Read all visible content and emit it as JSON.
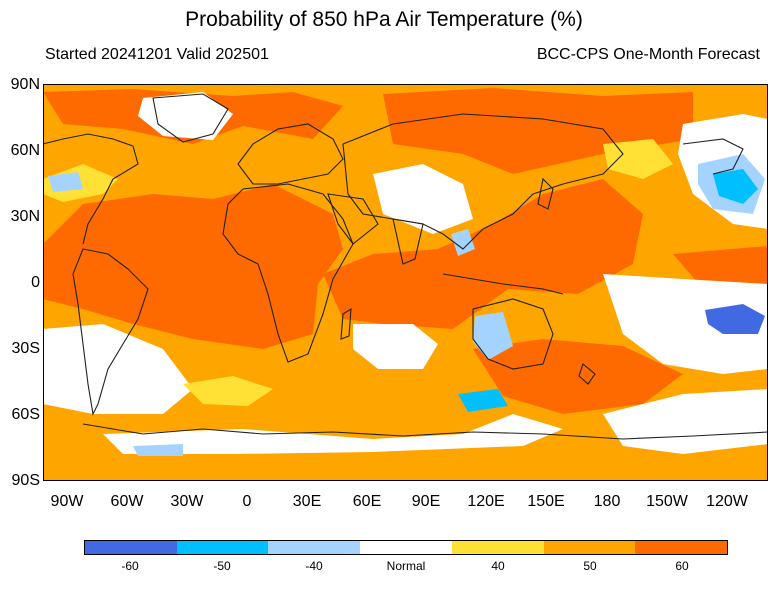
{
  "title": "Probability of 850 hPa Air Temperature (%)",
  "subtitle_left": "Started 20241201  Valid 202501",
  "subtitle_right": "BCC-CPS One-Month Forecast",
  "lat_labels": [
    "90N",
    "60N",
    "30N",
    "0",
    "30S",
    "60S",
    "90S"
  ],
  "lon_labels": [
    "90W",
    "60W",
    "30W",
    "0",
    "30E",
    "60E",
    "90E",
    "120E",
    "150E",
    "180",
    "150W",
    "120W"
  ],
  "legend": {
    "labels": [
      "-60",
      "-50",
      "-40",
      "Normal",
      "40",
      "50",
      "60"
    ],
    "colors": [
      "#4169e1",
      "#00bfff",
      "#a4d3ff",
      "#ffffff",
      "#ffe135",
      "#ffa500",
      "#ff6a00"
    ]
  },
  "colors": {
    "base": "#ffa500",
    "warm_strong": "#ff6a00",
    "warm_light": "#ffe135",
    "normal": "#ffffff",
    "cold_light": "#a4d3ff",
    "cold_mid": "#00bfff",
    "cold_strong": "#4169e1",
    "coast": "#222222"
  }
}
